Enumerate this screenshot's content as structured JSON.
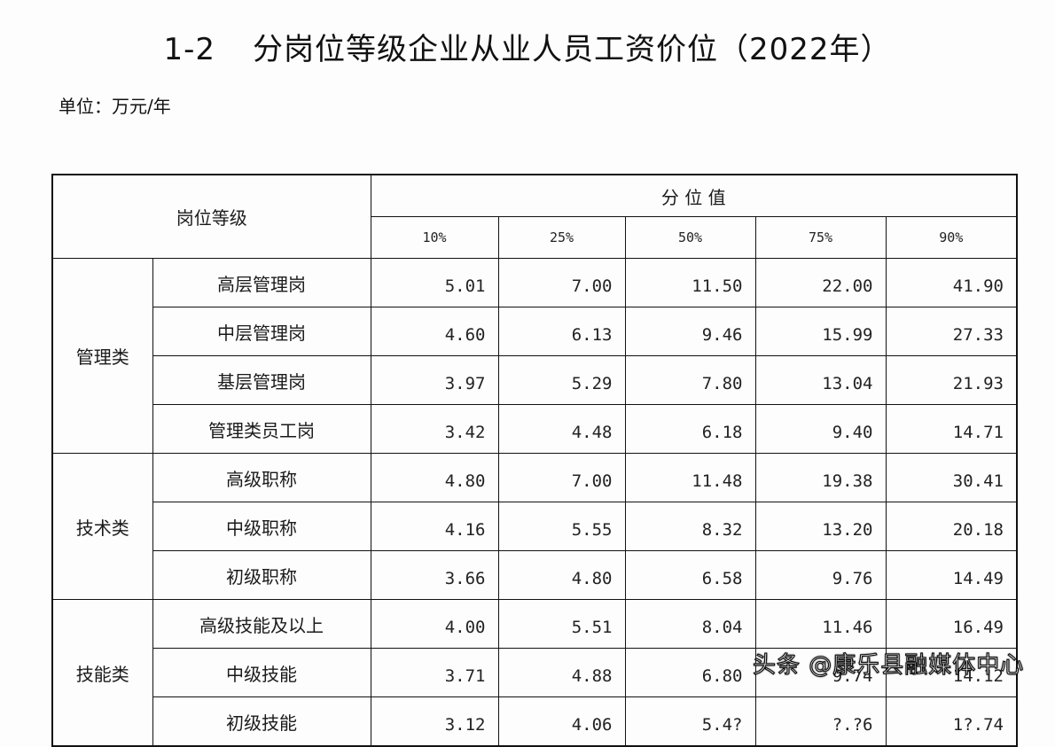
{
  "title": {
    "number": "1-2",
    "text": "分岗位等级企业从业人员工资价位（2022年）"
  },
  "unit": "单位：万元/年",
  "table": {
    "header_left": "岗位等级",
    "header_group": "分 位 值",
    "percentiles": [
      "10%",
      "25%",
      "50%",
      "75%",
      "90%"
    ],
    "groups": [
      {
        "category": "管理类",
        "rows": [
          {
            "label": "高层管理岗",
            "values": [
              "5.01",
              "7.00",
              "11.50",
              "22.00",
              "41.90"
            ]
          },
          {
            "label": "中层管理岗",
            "values": [
              "4.60",
              "6.13",
              "9.46",
              "15.99",
              "27.33"
            ]
          },
          {
            "label": "基层管理岗",
            "values": [
              "3.97",
              "5.29",
              "7.80",
              "13.04",
              "21.93"
            ]
          },
          {
            "label": "管理类员工岗",
            "values": [
              "3.42",
              "4.48",
              "6.18",
              "9.40",
              "14.71"
            ]
          }
        ]
      },
      {
        "category": "技术类",
        "rows": [
          {
            "label": "高级职称",
            "values": [
              "4.80",
              "7.00",
              "11.48",
              "19.38",
              "30.41"
            ]
          },
          {
            "label": "中级职称",
            "values": [
              "4.16",
              "5.55",
              "8.32",
              "13.20",
              "20.18"
            ]
          },
          {
            "label": "初级职称",
            "values": [
              "3.66",
              "4.80",
              "6.58",
              "9.76",
              "14.49"
            ]
          }
        ]
      },
      {
        "category": "技能类",
        "rows": [
          {
            "label": "高级技能及以上",
            "values": [
              "4.00",
              "5.51",
              "8.04",
              "11.46",
              "16.49"
            ]
          },
          {
            "label": "中级技能",
            "values": [
              "3.71",
              "4.88",
              "6.80",
              "9.74",
              "14.12"
            ]
          },
          {
            "label": "初级技能",
            "values": [
              "3.12",
              "4.06",
              "5.4?",
              "?.?6",
              "1?.74"
            ]
          }
        ]
      }
    ]
  },
  "watermark": "头条 @康乐县融媒体中心"
}
